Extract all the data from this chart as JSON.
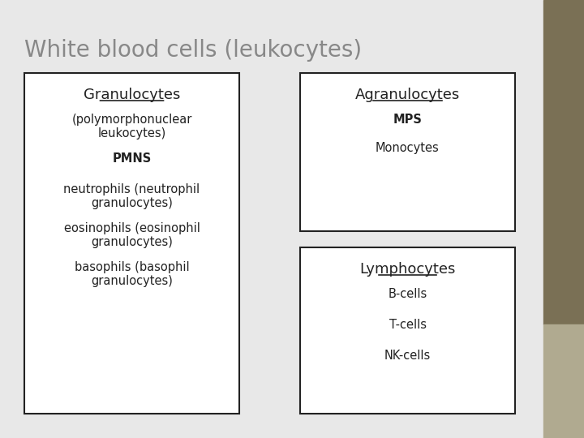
{
  "title": "White blood cells (leukocytes)",
  "title_color": "#888888",
  "bg_color": "#e8e8e8",
  "right_stripe_color": "#7a7055",
  "right_stripe2_color": "#b0aa90",
  "box_edge_color": "#222222",
  "box_face_color": "#ffffff",
  "left_box": {
    "header": "Granulocytes",
    "header_underline": true,
    "lines": [
      {
        "text": "(polymorphonuclear\nleukocytes)",
        "bold": false
      },
      {
        "text": "PMNS",
        "bold": true
      },
      {
        "text": "",
        "bold": false
      },
      {
        "text": "neutrophils (neutrophil\ngranulocytes)",
        "bold": false
      },
      {
        "text": "eosinophils (eosinophil\ngranulocytes)",
        "bold": false
      },
      {
        "text": "basophils (basophil\ngranulocytes)",
        "bold": false
      }
    ]
  },
  "right_top_box": {
    "header": "Agranulocytes",
    "header_underline": true,
    "lines": [
      {
        "text": "MPS",
        "bold": true
      },
      {
        "text": "Monocytes",
        "bold": false
      }
    ]
  },
  "right_bottom_box": {
    "header": "Lymphocytes",
    "header_underline": true,
    "lines": [
      {
        "text": "B-cells",
        "bold": false
      },
      {
        "text": "T-cells",
        "bold": false
      },
      {
        "text": "NK-cells",
        "bold": false
      }
    ]
  }
}
